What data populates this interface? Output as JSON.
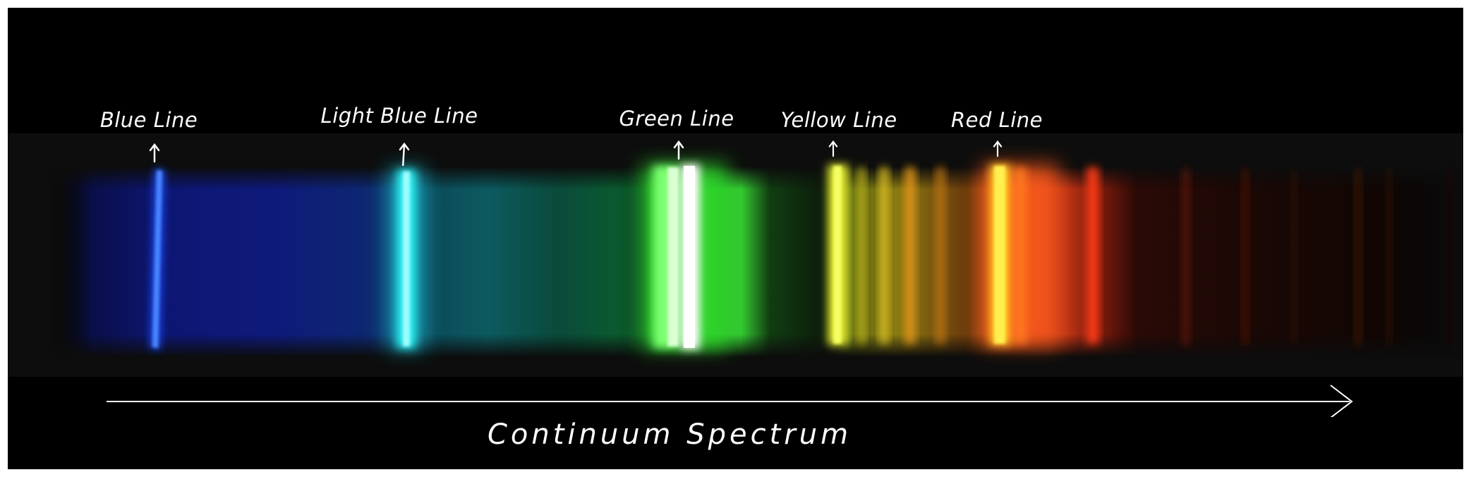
{
  "spectrum": {
    "lines": [
      {
        "id": "blue",
        "label": "Blue Line",
        "color": "#2f6bff"
      },
      {
        "id": "light-blue",
        "label": "Light Blue Line",
        "color": "#29f0f0"
      },
      {
        "id": "green",
        "label": "Green Line",
        "color": "#ecffe6"
      },
      {
        "id": "yellow",
        "label": "Yellow Line",
        "color": "#e9f23a"
      },
      {
        "id": "red",
        "label": "Red Line",
        "color": "#ffe630"
      }
    ],
    "axis_label": "Continuum Spectrum"
  },
  "colors": {
    "background": "#000000",
    "band_background": "#0d0d0d",
    "deep_blue": "#0e1a7a",
    "teal": "#0b4a5a",
    "green": "#35c832",
    "orange": "#e87a1a",
    "red": "#e03a18",
    "dark_red": "#4a0e06",
    "annotation": "#ffffff"
  }
}
